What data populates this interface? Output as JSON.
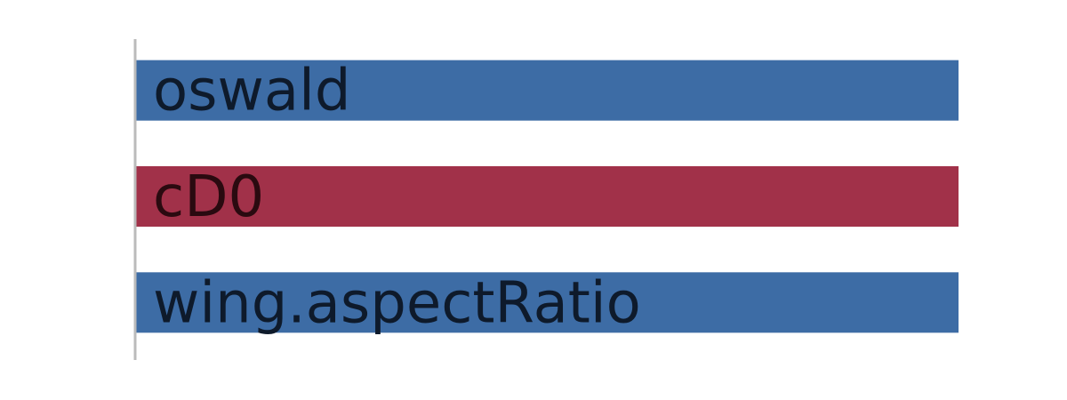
{
  "chart_data": {
    "type": "bar",
    "orientation": "horizontal",
    "categories": [
      "oswald",
      "cD0",
      "wing.aspectRatio"
    ],
    "values": [
      1,
      1,
      1
    ],
    "xlim": [
      0,
      1
    ],
    "grid": false,
    "legend": "none",
    "colors": {
      "positive": "#3d6ca5",
      "negative": "#a13149",
      "label_on_positive": "#0e1a2b",
      "label_on_negative": "#2a0a10",
      "axis": "#bbbbbb"
    },
    "bar_colors": [
      "positive",
      "negative",
      "positive"
    ]
  }
}
